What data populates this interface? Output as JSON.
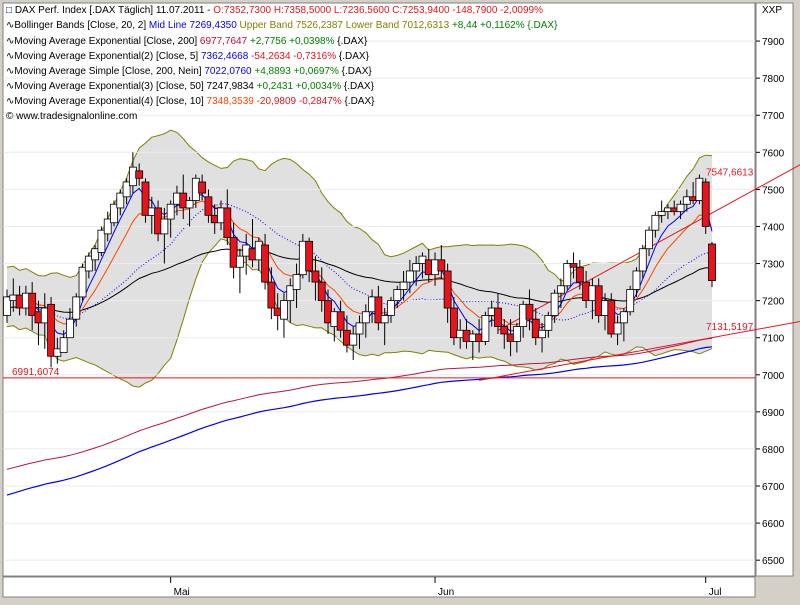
{
  "legend": {
    "title": {
      "text": "DAX Perf. Index [.DAX Täglich] 11.07.2011 - ",
      "values": "O:7352,7300 H:7358,5000 L:7236,5600 C:7253,9400 -148,7900 -2,0099%"
    },
    "bollinger": {
      "text": "Bollinger Bands [Close, 20, 2] ",
      "mid": "Mid Line 7269,4350",
      "band": " Upper Band 7526,2387 Lower Band 7012,6313",
      "chg": " +8,44 +0,1162% {.DAX}"
    },
    "ema200": {
      "name": "Moving Average Exponential [Close, 200] ",
      "value": "6977,7647",
      "chg": " +2,7756 +0,0398%",
      "sym": " {.DAX}"
    },
    "ema5": {
      "name": "Moving Average Exponential(2) [Close, 5] ",
      "value": "7362,4668",
      "chg": " -54,2634 -0,7316%",
      "sym": " {.DAX}"
    },
    "sma200": {
      "name": "Moving Average Simple [Close, 200, Nein] ",
      "value": "7022,0760",
      "chg": " +4,8893 +0,0697%",
      "sym": " {.DAX}"
    },
    "ema50": {
      "name": "Moving Average Exponential(3) [Close, 50] ",
      "value": "7247,9834",
      "chg": " +0,2431 +0,0034%",
      "sym": " {.DAX}"
    },
    "ema10": {
      "name": "Moving Average Exponential(4) [Close, 10] ",
      "value": "7348,3539",
      "chg": " -20,9809 -0,2847%",
      "sym": " {.DAX}"
    },
    "copyright": "© www.tradesignalonline.com"
  },
  "axis_symbol": "XXP",
  "colors": {
    "up": "#ffffff",
    "down": "#e8141c",
    "band": "#808000",
    "ema5": "#0000ff",
    "ema10": "#ff4500",
    "ema50": "#000000",
    "sma200": "#0000ff",
    "ema200": "#c0143c",
    "bandfill": "#e0e0e0"
  },
  "chart_data": {
    "type": "candlestick",
    "ylim": [
      6460,
      8000
    ],
    "yticks": [
      6500,
      6600,
      6700,
      6800,
      6900,
      7000,
      7100,
      7200,
      7300,
      7400,
      7500,
      7600,
      7700,
      7800,
      7900
    ],
    "months": [
      {
        "label": "Mai",
        "index": 26
      },
      {
        "label": "Jun",
        "index": 68
      },
      {
        "label": "Jul",
        "index": 111
      }
    ],
    "annotations": [
      {
        "label": "7547,6613",
        "y": 7547.6613
      },
      {
        "label": "7131,5197",
        "y": 7131.5197
      },
      {
        "label": "6991,6074",
        "y": 6991.6074
      }
    ],
    "hline": 6991.6074,
    "candles": [
      [
        7160,
        7230,
        7140,
        7210
      ],
      [
        7200,
        7260,
        7170,
        7215
      ],
      [
        7215,
        7240,
        7160,
        7180
      ],
      [
        7180,
        7240,
        7160,
        7220
      ],
      [
        7220,
        7250,
        7120,
        7160
      ],
      [
        7170,
        7200,
        7080,
        7140
      ],
      [
        7140,
        7220,
        7070,
        7180
      ],
      [
        7190,
        7210,
        7020,
        7050
      ],
      [
        7050,
        7100,
        7030,
        7070
      ],
      [
        7060,
        7120,
        7060,
        7100
      ],
      [
        7100,
        7180,
        7100,
        7150
      ],
      [
        7150,
        7220,
        7130,
        7210
      ],
      [
        7210,
        7300,
        7200,
        7290
      ],
      [
        7280,
        7330,
        7260,
        7320
      ],
      [
        7310,
        7350,
        7280,
        7340
      ],
      [
        7330,
        7400,
        7320,
        7390
      ],
      [
        7380,
        7440,
        7360,
        7420
      ],
      [
        7410,
        7470,
        7400,
        7460
      ],
      [
        7450,
        7500,
        7430,
        7490
      ],
      [
        7480,
        7530,
        7460,
        7520
      ],
      [
        7510,
        7600,
        7490,
        7560
      ],
      [
        7550,
        7570,
        7510,
        7530
      ],
      [
        7520,
        7530,
        7410,
        7430
      ],
      [
        7430,
        7480,
        7380,
        7450
      ],
      [
        7450,
        7470,
        7360,
        7380
      ],
      [
        7380,
        7450,
        7300,
        7420
      ],
      [
        7420,
        7470,
        7370,
        7460
      ],
      [
        7460,
        7510,
        7430,
        7490
      ],
      [
        7490,
        7540,
        7420,
        7450
      ],
      [
        7450,
        7480,
        7400,
        7470
      ],
      [
        7470,
        7540,
        7450,
        7530
      ],
      [
        7520,
        7540,
        7470,
        7490
      ],
      [
        7480,
        7500,
        7410,
        7430
      ],
      [
        7430,
        7460,
        7380,
        7410
      ],
      [
        7410,
        7470,
        7390,
        7450
      ],
      [
        7450,
        7500,
        7350,
        7370
      ],
      [
        7370,
        7410,
        7260,
        7290
      ],
      [
        7290,
        7340,
        7220,
        7320
      ],
      [
        7320,
        7380,
        7270,
        7350
      ],
      [
        7340,
        7420,
        7290,
        7310
      ],
      [
        7310,
        7370,
        7280,
        7360
      ],
      [
        7350,
        7380,
        7230,
        7250
      ],
      [
        7250,
        7290,
        7150,
        7180
      ],
      [
        7180,
        7220,
        7120,
        7160
      ],
      [
        7150,
        7220,
        7100,
        7200
      ],
      [
        7200,
        7260,
        7140,
        7240
      ],
      [
        7230,
        7300,
        7180,
        7270
      ],
      [
        7270,
        7380,
        7260,
        7360
      ],
      [
        7360,
        7370,
        7250,
        7280
      ],
      [
        7280,
        7320,
        7200,
        7250
      ],
      [
        7250,
        7290,
        7170,
        7200
      ],
      [
        7200,
        7230,
        7110,
        7140
      ],
      [
        7130,
        7180,
        7090,
        7170
      ],
      [
        7170,
        7200,
        7100,
        7120
      ],
      [
        7120,
        7160,
        7060,
        7080
      ],
      [
        7080,
        7130,
        7040,
        7110
      ],
      [
        7110,
        7160,
        7070,
        7140
      ],
      [
        7140,
        7190,
        7100,
        7170
      ],
      [
        7170,
        7230,
        7140,
        7210
      ],
      [
        7210,
        7240,
        7120,
        7140
      ],
      [
        7140,
        7180,
        7080,
        7160
      ],
      [
        7160,
        7210,
        7140,
        7200
      ],
      [
        7200,
        7240,
        7180,
        7230
      ],
      [
        7230,
        7280,
        7200,
        7250
      ],
      [
        7250,
        7310,
        7220,
        7280
      ],
      [
        7280,
        7320,
        7240,
        7300
      ],
      [
        7300,
        7330,
        7260,
        7320
      ],
      [
        7310,
        7340,
        7250,
        7270
      ],
      [
        7270,
        7330,
        7240,
        7310
      ],
      [
        7310,
        7350,
        7260,
        7280
      ],
      [
        7280,
        7300,
        7140,
        7180
      ],
      [
        7180,
        7210,
        7080,
        7100
      ],
      [
        7100,
        7150,
        7070,
        7120
      ],
      [
        7120,
        7150,
        7070,
        7090
      ],
      [
        7090,
        7120,
        7040,
        7110
      ],
      [
        7110,
        7150,
        7060,
        7090
      ],
      [
        7090,
        7170,
        7080,
        7160
      ],
      [
        7160,
        7200,
        7130,
        7180
      ],
      [
        7180,
        7220,
        7110,
        7130
      ],
      [
        7130,
        7150,
        7070,
        7110
      ],
      [
        7110,
        7150,
        7050,
        7090
      ],
      [
        7090,
        7140,
        7060,
        7130
      ],
      [
        7130,
        7200,
        7100,
        7190
      ],
      [
        7190,
        7230,
        7120,
        7150
      ],
      [
        7150,
        7180,
        7080,
        7100
      ],
      [
        7100,
        7140,
        7060,
        7120
      ],
      [
        7120,
        7170,
        7100,
        7160
      ],
      [
        7160,
        7230,
        7140,
        7220
      ],
      [
        7220,
        7260,
        7180,
        7240
      ],
      [
        7240,
        7310,
        7230,
        7300
      ],
      [
        7300,
        7330,
        7260,
        7290
      ],
      [
        7290,
        7310,
        7230,
        7250
      ],
      [
        7250,
        7280,
        7180,
        7200
      ],
      [
        7200,
        7260,
        7150,
        7240
      ],
      [
        7240,
        7260,
        7140,
        7160
      ],
      [
        7160,
        7220,
        7120,
        7200
      ],
      [
        7200,
        7220,
        7100,
        7110
      ],
      [
        7110,
        7160,
        7080,
        7140
      ],
      [
        7140,
        7180,
        7090,
        7170
      ],
      [
        7170,
        7240,
        7160,
        7230
      ],
      [
        7230,
        7290,
        7210,
        7280
      ],
      [
        7280,
        7350,
        7260,
        7340
      ],
      [
        7340,
        7400,
        7320,
        7390
      ],
      [
        7390,
        7440,
        7370,
        7430
      ],
      [
        7430,
        7470,
        7410,
        7440
      ],
      [
        7440,
        7460,
        7420,
        7450
      ],
      [
        7450,
        7470,
        7430,
        7440
      ],
      [
        7440,
        7470,
        7420,
        7460
      ],
      [
        7460,
        7500,
        7440,
        7480
      ],
      [
        7480,
        7520,
        7460,
        7470
      ],
      [
        7470,
        7540,
        7460,
        7530
      ],
      [
        7520,
        7530,
        7380,
        7400
      ],
      [
        7352.73,
        7358.5,
        7236.56,
        7253.94
      ]
    ]
  }
}
